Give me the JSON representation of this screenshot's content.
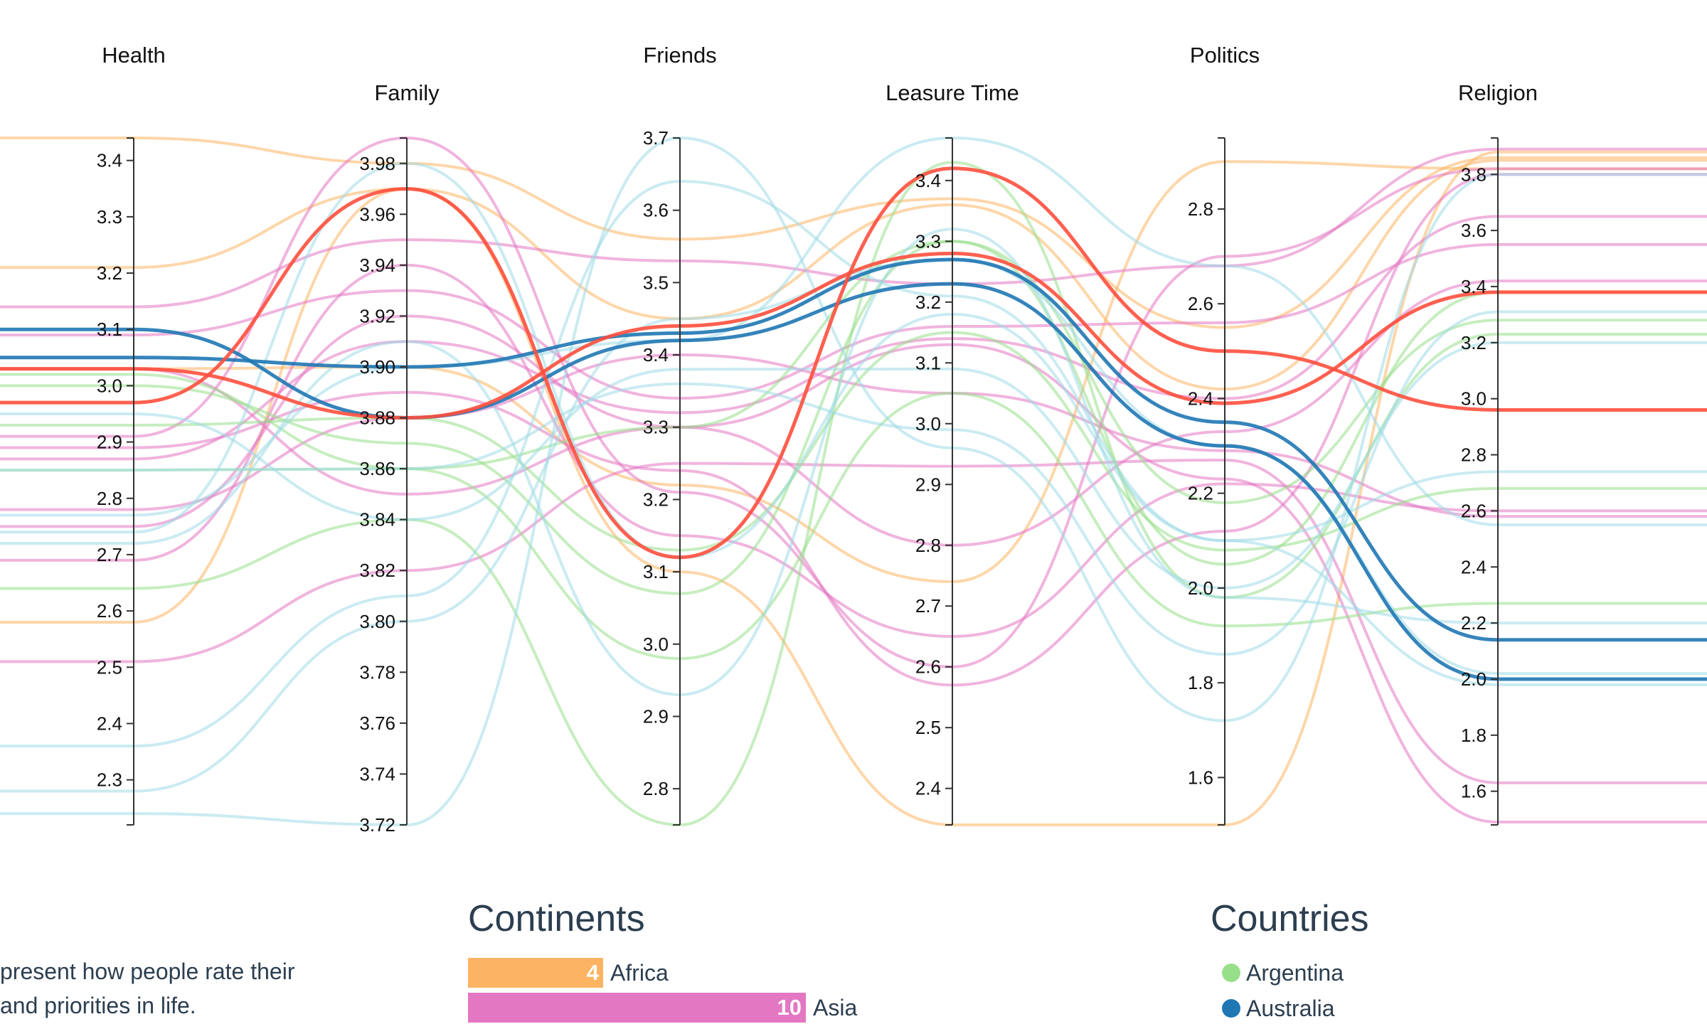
{
  "chart_data": {
    "type": "parallel-coordinates",
    "axes": [
      {
        "name": "Health",
        "min": 2.22,
        "max": 3.44,
        "ticks": [
          "2.3",
          "2.4",
          "2.5",
          "2.6",
          "2.7",
          "2.8",
          "2.9",
          "3.0",
          "3.1",
          "3.2",
          "3.3",
          "3.4"
        ]
      },
      {
        "name": "Family",
        "min": 3.72,
        "max": 3.99,
        "ticks": [
          "3.72",
          "3.74",
          "3.76",
          "3.78",
          "3.80",
          "3.82",
          "3.84",
          "3.86",
          "3.88",
          "3.90",
          "3.92",
          "3.94",
          "3.96",
          "3.98"
        ]
      },
      {
        "name": "Friends",
        "min": 2.75,
        "max": 3.7,
        "ticks": [
          "2.8",
          "2.9",
          "3.0",
          "3.1",
          "3.2",
          "3.3",
          "3.4",
          "3.5",
          "3.6",
          "3.7"
        ]
      },
      {
        "name": "Leasure Time",
        "min": 2.34,
        "max": 3.47,
        "ticks": [
          "2.4",
          "2.5",
          "2.6",
          "2.7",
          "2.8",
          "2.9",
          "3.0",
          "3.1",
          "3.2",
          "3.3",
          "3.4"
        ]
      },
      {
        "name": "Politics",
        "min": 1.5,
        "max": 2.95,
        "ticks": [
          "1.6",
          "1.8",
          "2.0",
          "2.2",
          "2.4",
          "2.6",
          "2.8"
        ]
      },
      {
        "name": "Religion",
        "min": 1.48,
        "max": 3.93,
        "ticks": [
          "1.6",
          "1.8",
          "2.0",
          "2.2",
          "2.4",
          "2.6",
          "2.8",
          "3.0",
          "3.2",
          "3.4",
          "3.6",
          "3.8"
        ]
      }
    ],
    "colors": {
      "Africa": "#fdb462",
      "Asia": "#e377c2",
      "Argentina": "#98df8a",
      "Australia": "#1f77b4",
      "Europe": "#9edae5",
      "Highlight": "#ff4f3d"
    },
    "lines": [
      {
        "group": "Africa",
        "v": [
          3.44,
          3.98,
          3.56,
          3.37,
          2.55,
          3.86
        ]
      },
      {
        "group": "Africa",
        "v": [
          3.21,
          3.97,
          3.45,
          3.36,
          2.42,
          3.85
        ]
      },
      {
        "group": "Africa",
        "v": [
          3.03,
          3.9,
          3.22,
          2.74,
          2.9,
          3.82
        ]
      },
      {
        "group": "Africa",
        "v": [
          2.58,
          3.97,
          3.1,
          2.34,
          1.5,
          3.88
        ]
      },
      {
        "group": "Asia",
        "v": [
          3.14,
          3.95,
          3.53,
          3.23,
          2.68,
          3.89
        ]
      },
      {
        "group": "Asia",
        "v": [
          3.09,
          3.93,
          3.34,
          3.16,
          2.56,
          3.55
        ]
      },
      {
        "group": "Asia",
        "v": [
          2.91,
          3.99,
          3.21,
          2.6,
          2.7,
          3.82
        ]
      },
      {
        "group": "Asia",
        "v": [
          2.75,
          3.92,
          3.3,
          2.8,
          2.33,
          3.42
        ]
      },
      {
        "group": "Asia",
        "v": [
          2.69,
          3.94,
          3.15,
          2.65,
          2.22,
          2.6
        ]
      },
      {
        "group": "Asia",
        "v": [
          2.51,
          3.82,
          3.25,
          2.93,
          2.27,
          1.63
        ]
      },
      {
        "group": "Asia",
        "v": [
          2.78,
          3.88,
          3.4,
          3.05,
          2.29,
          2.58
        ]
      },
      {
        "group": "Asia",
        "v": [
          2.89,
          3.89,
          3.24,
          2.57,
          2.12,
          3.8
        ]
      },
      {
        "group": "Asia",
        "v": [
          3.03,
          3.85,
          3.3,
          3.13,
          2.23,
          1.49
        ]
      },
      {
        "group": "Asia",
        "v": [
          2.87,
          3.91,
          3.32,
          3.14,
          2.4,
          3.65
        ]
      },
      {
        "group": "Argentina",
        "v": [
          3.0,
          3.87,
          3.07,
          3.3,
          2.05,
          3.38
        ]
      },
      {
        "group": "Argentina",
        "v": [
          2.64,
          3.84,
          2.75,
          3.43,
          1.98,
          3.23
        ]
      },
      {
        "group": "Argentina",
        "v": [
          2.93,
          3.88,
          3.13,
          3.15,
          2.08,
          2.68
        ]
      },
      {
        "group": "Argentina",
        "v": [
          3.02,
          3.86,
          3.3,
          3.3,
          2.18,
          3.28
        ]
      },
      {
        "group": "Argentina",
        "v": [
          2.85,
          3.86,
          2.98,
          3.05,
          1.92,
          2.27
        ]
      },
      {
        "group": "Europe",
        "v": [
          2.77,
          3.9,
          3.42,
          3.47,
          2.68,
          2.55
        ]
      },
      {
        "group": "Europe",
        "v": [
          2.36,
          3.81,
          3.64,
          3.21,
          2.1,
          1.98
        ]
      },
      {
        "group": "Europe",
        "v": [
          2.24,
          3.72,
          3.7,
          2.96,
          1.72,
          3.8
        ]
      },
      {
        "group": "Europe",
        "v": [
          2.72,
          3.91,
          2.93,
          3.32,
          1.98,
          2.2
        ]
      },
      {
        "group": "Europe",
        "v": [
          2.85,
          3.86,
          3.36,
          2.99,
          1.86,
          3.31
        ]
      },
      {
        "group": "Europe",
        "v": [
          2.74,
          3.98,
          3.12,
          3.18,
          2.1,
          2.74
        ]
      },
      {
        "group": "Europe",
        "v": [
          2.28,
          3.8,
          3.45,
          3.27,
          2.3,
          2.02
        ]
      },
      {
        "group": "Europe",
        "v": [
          2.95,
          3.84,
          3.38,
          3.09,
          2.0,
          3.2
        ]
      },
      {
        "group": "Australia",
        "v": [
          3.05,
          3.9,
          3.43,
          3.27,
          2.35,
          2.14
        ]
      },
      {
        "group": "Australia",
        "v": [
          3.1,
          3.88,
          3.42,
          3.23,
          2.3,
          2.0
        ]
      },
      {
        "group": "Highlight",
        "v": [
          2.97,
          3.97,
          3.12,
          3.42,
          2.5,
          2.96
        ]
      },
      {
        "group": "Highlight",
        "v": [
          3.03,
          3.88,
          3.44,
          3.28,
          2.39,
          3.38
        ]
      }
    ]
  },
  "continents": {
    "title": "Continents",
    "items": [
      {
        "label": "Africa",
        "count": "4",
        "color": "#fdb462"
      },
      {
        "label": "Asia",
        "count": "10",
        "color": "#e377c2"
      }
    ]
  },
  "countries": {
    "title": "Countries",
    "items": [
      {
        "label": "Argentina",
        "color": "#98df8a"
      },
      {
        "label": "Australia",
        "color": "#1f77b4"
      }
    ]
  },
  "description": {
    "line1": "present how people rate their",
    "line2": "and priorities in life."
  }
}
